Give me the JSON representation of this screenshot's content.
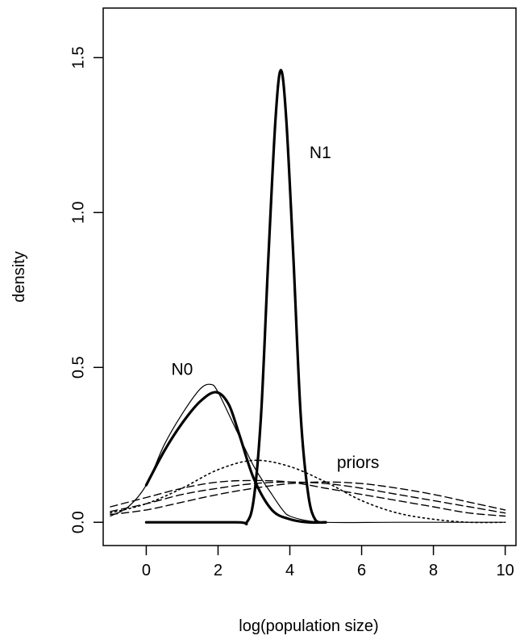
{
  "chart_data": {
    "type": "line",
    "title": "",
    "xlabel": "log(population size)",
    "ylabel": "density",
    "xlim": [
      -1.2,
      10.3
    ],
    "ylim": [
      -0.075,
      1.66
    ],
    "x_ticks": [
      0,
      2,
      4,
      6,
      8,
      10
    ],
    "x_tick_labels": [
      "0",
      "2",
      "4",
      "6",
      "8",
      "10"
    ],
    "y_ticks": [
      0.0,
      0.5,
      1.0,
      1.5
    ],
    "y_tick_labels": [
      "0.0",
      "0.5",
      "1.0",
      "1.5"
    ],
    "grid": false,
    "legend": "none",
    "annotations": [
      {
        "text": "N0",
        "x": 1.0,
        "y": 0.49
      },
      {
        "text": "N1",
        "x": 4.85,
        "y": 1.19
      },
      {
        "text": "priors",
        "x": 5.9,
        "y": 0.19
      }
    ],
    "series": [
      {
        "id": "n0-thin",
        "line_style": "solid-thin",
        "x": [
          -1,
          -0.5,
          0,
          0.5,
          1,
          1.5,
          1.8,
          2,
          2.5,
          3,
          3.5,
          3.8,
          4,
          4.5,
          5
        ],
        "y": [
          0.02,
          0.05,
          0.12,
          0.25,
          0.35,
          0.43,
          0.445,
          0.42,
          0.3,
          0.18,
          0.09,
          0.04,
          0.02,
          0.005,
          0.0
        ]
      },
      {
        "id": "n0-thick",
        "line_style": "solid-thick",
        "x": [
          0,
          0.5,
          1,
          1.5,
          1.95,
          2.3,
          2.6,
          3,
          3.5,
          4,
          4.5,
          5
        ],
        "y": [
          0.12,
          0.23,
          0.32,
          0.39,
          0.42,
          0.38,
          0.28,
          0.14,
          0.04,
          0.01,
          0.0,
          0.0
        ]
      },
      {
        "id": "n1-thin",
        "line_style": "solid-thin",
        "x": [
          2.8,
          3.0,
          3.2,
          3.4,
          3.6,
          3.75,
          3.9,
          4.1,
          4.3,
          4.5,
          4.7,
          5,
          7,
          10
        ],
        "y": [
          0.0,
          0.08,
          0.35,
          0.85,
          1.3,
          1.46,
          1.3,
          0.85,
          0.35,
          0.1,
          0.01,
          0.0,
          0.0,
          0.0
        ]
      },
      {
        "id": "n1-thick",
        "line_style": "solid-thick",
        "x": [
          0,
          2.5,
          2.8,
          3.0,
          3.2,
          3.4,
          3.6,
          3.75,
          3.9,
          4.1,
          4.3,
          4.5,
          4.7,
          5
        ],
        "y": [
          0.0,
          0.0,
          0.0,
          0.08,
          0.35,
          0.85,
          1.3,
          1.46,
          1.3,
          0.85,
          0.35,
          0.1,
          0.01,
          0.0
        ]
      },
      {
        "id": "prior-dotted",
        "line_style": "dotted",
        "x": [
          -1,
          0,
          1,
          2,
          3,
          4,
          5,
          6,
          7,
          8,
          9,
          10
        ],
        "y": [
          0.03,
          0.06,
          0.11,
          0.17,
          0.2,
          0.18,
          0.13,
          0.07,
          0.03,
          0.01,
          0.0,
          0.0
        ]
      },
      {
        "id": "prior-dashed-1",
        "line_style": "dashed",
        "x": [
          -1,
          0,
          1,
          2,
          3,
          4,
          5,
          6,
          7,
          8,
          9,
          10
        ],
        "y": [
          0.05,
          0.08,
          0.11,
          0.13,
          0.135,
          0.13,
          0.11,
          0.09,
          0.07,
          0.05,
          0.03,
          0.02
        ]
      },
      {
        "id": "prior-dashed-2",
        "line_style": "dashed",
        "x": [
          -1,
          0,
          1,
          2,
          3,
          4,
          5,
          6,
          7,
          8,
          9,
          10
        ],
        "y": [
          0.035,
          0.06,
          0.09,
          0.11,
          0.125,
          0.13,
          0.125,
          0.11,
          0.09,
          0.07,
          0.05,
          0.03
        ]
      },
      {
        "id": "prior-dashed-3",
        "line_style": "dashed",
        "x": [
          -1,
          0,
          1,
          2,
          3,
          4,
          5,
          6,
          7,
          8,
          9,
          10
        ],
        "y": [
          0.025,
          0.04,
          0.065,
          0.09,
          0.11,
          0.125,
          0.13,
          0.125,
          0.11,
          0.09,
          0.065,
          0.04
        ]
      }
    ]
  }
}
